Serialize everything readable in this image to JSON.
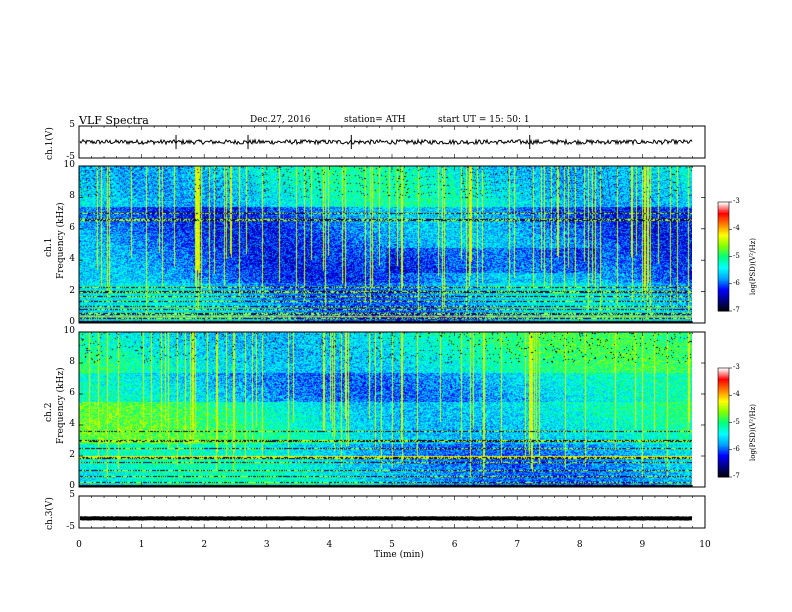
{
  "header": {
    "title": "VLF  Spectra",
    "date": "Dec.27, 2016",
    "station": "station= ATH",
    "start": "start  UT  =    15: 50: 1"
  },
  "chart_data": [
    {
      "type": "line",
      "name": "ch1-waveform",
      "ylabel": "ch.1(V)",
      "yticks": [
        "5",
        "-5"
      ],
      "ylim": [
        -5,
        5
      ],
      "xlim": [
        0,
        10
      ],
      "note_level": 0
    },
    {
      "type": "heatmap",
      "name": "ch1-spectrogram",
      "ylabel": "ch.1\nFrequency (kHz)",
      "ylabel_line1": "ch.1",
      "ylabel_line2": "Frequency  (kHz)",
      "yticks": [
        "0",
        "2",
        "4",
        "6",
        "8",
        "10"
      ],
      "ylim": [
        0,
        10
      ],
      "xlim": [
        0,
        9.8
      ],
      "colorbar": {
        "label": "log(PSD)(V²/Hz)",
        "ticks": [
          "-3",
          "-4",
          "-5",
          "-6",
          "-7"
        ],
        "range": [
          -7,
          -3
        ]
      }
    },
    {
      "type": "heatmap",
      "name": "ch2-spectrogram",
      "ylabel_line1": "ch.2",
      "ylabel_line2": "Frequency  (kHz)",
      "yticks": [
        "0",
        "2",
        "4",
        "6",
        "8",
        "10"
      ],
      "ylim": [
        0,
        10
      ],
      "xlim": [
        0,
        9.8
      ],
      "colorbar": {
        "label": "log(PSD)(V²/Hz)",
        "ticks": [
          "-3",
          "-4",
          "-5",
          "-6",
          "-7"
        ],
        "range": [
          -7,
          -3
        ]
      }
    },
    {
      "type": "line",
      "name": "ch3-waveform",
      "ylabel": "ch.3(V)",
      "yticks": [
        "5",
        "-5"
      ],
      "ylim": [
        -5,
        5
      ],
      "xlim": [
        0,
        10
      ],
      "level": -2
    }
  ],
  "xaxis": {
    "label": "Time  (min)",
    "ticks": [
      "0",
      "1",
      "2",
      "3",
      "4",
      "5",
      "6",
      "7",
      "8",
      "9",
      "10"
    ],
    "range": [
      0,
      10
    ]
  },
  "colors": {
    "colormap": [
      "#000000",
      "#000080",
      "#0000ff",
      "#00a0ff",
      "#00ffff",
      "#00ff80",
      "#80ff00",
      "#ffff00",
      "#ff8000",
      "#ff0000",
      "#ffffff"
    ]
  }
}
